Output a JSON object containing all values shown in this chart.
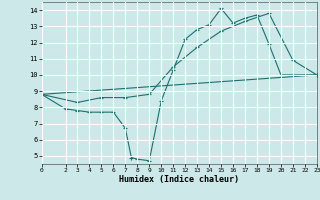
{
  "title": "",
  "xlabel": "Humidex (Indice chaleur)",
  "xlim": [
    0,
    23
  ],
  "ylim": [
    4.5,
    14.5
  ],
  "xticks": [
    0,
    2,
    3,
    4,
    5,
    6,
    7,
    8,
    9,
    10,
    11,
    12,
    13,
    14,
    15,
    16,
    17,
    18,
    19,
    20,
    21,
    22,
    23
  ],
  "yticks": [
    5,
    6,
    7,
    8,
    9,
    10,
    11,
    12,
    13,
    14
  ],
  "background_color": "#cce8e8",
  "grid_color": "#ffffff",
  "line_color": "#1a7070",
  "line1_x": [
    0,
    2,
    3,
    4,
    5,
    6,
    7,
    7.5,
    8,
    9,
    10,
    11,
    12,
    13,
    14,
    15,
    16,
    17,
    18,
    19,
    20,
    22,
    23
  ],
  "line1_y": [
    8.8,
    7.9,
    7.8,
    7.7,
    7.7,
    7.7,
    6.7,
    4.9,
    4.8,
    4.7,
    8.4,
    10.3,
    12.2,
    12.8,
    13.1,
    14.1,
    13.2,
    13.5,
    13.7,
    11.9,
    10.0,
    10.0,
    10.0
  ],
  "line2_x": [
    0,
    3,
    5,
    7,
    9,
    11,
    13,
    15,
    17,
    19,
    21,
    23
  ],
  "line2_y": [
    8.8,
    8.3,
    8.6,
    8.6,
    8.8,
    10.5,
    11.7,
    12.7,
    13.3,
    13.8,
    10.9,
    10.0
  ],
  "line3_x": [
    0,
    23
  ],
  "line3_y": [
    8.8,
    10.0
  ]
}
